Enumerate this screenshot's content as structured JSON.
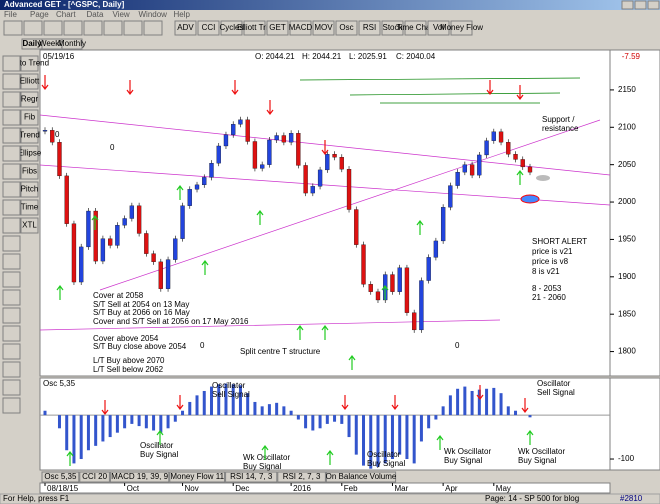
{
  "window": {
    "title": "Advanced GET - [^GSPC, Daily]",
    "menu": [
      "File",
      "Page",
      "Chart",
      "Data",
      "View",
      "Window",
      "Help"
    ],
    "toolbar": [
      "ADV",
      "CCI",
      "Cycles",
      "Elliott Trig",
      "GET",
      "MACD",
      "MOV",
      "Osc",
      "RSI",
      "Stock",
      "Time Chan",
      "Vol",
      "Money Flow"
    ],
    "tabs": [
      "Daily",
      "Weekly",
      "Monthly"
    ],
    "left_tools": [
      "Auto Trend",
      "Elliott",
      "Regr",
      "Fib",
      "Trend",
      "Ellipse",
      "Fibs",
      "Pitch",
      "Time",
      "XTL"
    ]
  },
  "chart_data": [
    {
      "type": "candlestick",
      "date": "05/19/16",
      "open": "O: 2044.21",
      "high": "H: 2044.21",
      "low": "L: 2025.91",
      "close": "C: 2040.04",
      "change": "-7.59",
      "categories": [
        "08/18/15",
        null,
        null,
        null,
        null,
        null,
        null,
        null,
        null,
        null,
        null,
        "Oct",
        null,
        null,
        null,
        null,
        null,
        null,
        null,
        "Nov",
        null,
        null,
        null,
        null,
        null,
        null,
        "Dec",
        null,
        null,
        null,
        null,
        null,
        null,
        null,
        "2016",
        null,
        null,
        null,
        null,
        null,
        null,
        "Feb",
        null,
        null,
        null,
        null,
        null,
        null,
        "Mar",
        null,
        null,
        null,
        null,
        null,
        null,
        "Apr",
        null,
        null,
        null,
        null,
        null,
        null,
        "May",
        null,
        null,
        null,
        null,
        null
      ],
      "values": [
        2096,
        2080,
        2035,
        1971,
        1893,
        1940,
        1988,
        1921,
        1951,
        1942,
        1969,
        1978,
        1995,
        1958,
        1931,
        1920,
        1884,
        1923,
        1951,
        1995,
        2017,
        2023,
        2033,
        2052,
        2075,
        2090,
        2104,
        2110,
        2081,
        2045,
        2050,
        2083,
        2089,
        2080,
        2092,
        2049,
        2012,
        2021,
        2043,
        2064,
        2060,
        2044,
        1990,
        1943,
        1890,
        1880,
        1869,
        1903,
        1880,
        1912,
        1852,
        1829,
        1895,
        1926,
        1948,
        1993,
        2022,
        2040,
        2050,
        2036,
        2063,
        2082,
        2094,
        2080,
        2064,
        2057,
        2047,
        2040
      ],
      "ylim": [
        1770,
        2190
      ],
      "yticks": [
        1800,
        1850,
        1900,
        1950,
        2000,
        2050,
        2100,
        2150
      ],
      "annotations": [
        "Cover at 2058",
        "S/T Sell at 2054 on 13 May",
        "S/T Buy at 2066 on 16 May",
        "Cover and S/T Sell at 2056 on 17 May 2016",
        "Cover above 2054",
        "S/T Buy close above 2054",
        "L/T Buy above 2070",
        "L/T Sell below 2062",
        "Split centre T structure",
        "Support /",
        "resistance",
        "SHORT ALERT",
        "price is v21",
        "price is v8",
        "8 is v21",
        "8   - 2053",
        "21 - 2060",
        "0",
        "0",
        "0",
        "0"
      ]
    },
    {
      "type": "bar",
      "title": "Osc 5,35",
      "values": [
        10,
        0,
        -30,
        -80,
        -110,
        -100,
        -80,
        -70,
        -60,
        -50,
        -40,
        -30,
        -20,
        -25,
        -30,
        -35,
        -40,
        -30,
        -15,
        10,
        30,
        45,
        55,
        65,
        70,
        72,
        70,
        68,
        50,
        30,
        20,
        25,
        28,
        20,
        10,
        -10,
        -30,
        -35,
        -30,
        -20,
        -15,
        -20,
        -50,
        -90,
        -115,
        -122,
        -118,
        -110,
        -100,
        -90,
        -100,
        -110,
        -60,
        -30,
        -10,
        20,
        45,
        60,
        65,
        55,
        58,
        60,
        62,
        50,
        20,
        10,
        0,
        -5
      ],
      "ylim": [
        -125,
        80
      ],
      "yticks": [
        -100
      ],
      "annotations": [
        "Oscillator",
        "Sell Signal",
        "Oscillator",
        "Sell Signal",
        "Oscillator",
        "Buy Signal",
        "Wk Oscillator",
        "Buy Signal",
        "Oscillator",
        "Buy Signal",
        "Wk Oscillator",
        "Buy Signal",
        "Wk Oscillator",
        "Buy Signal"
      ],
      "tabs": [
        "Osc 5,35",
        "CCI 20",
        "MACD 19, 39, 9",
        "Money Flow 11",
        "RSI 14, 7, 3",
        "RSI 2, 7, 3",
        "On Balance Volume"
      ]
    }
  ],
  "status_bar": {
    "help": "For Help, press F1",
    "page": "Page: 14 - SP 500 for blog",
    "id": "#2810"
  }
}
